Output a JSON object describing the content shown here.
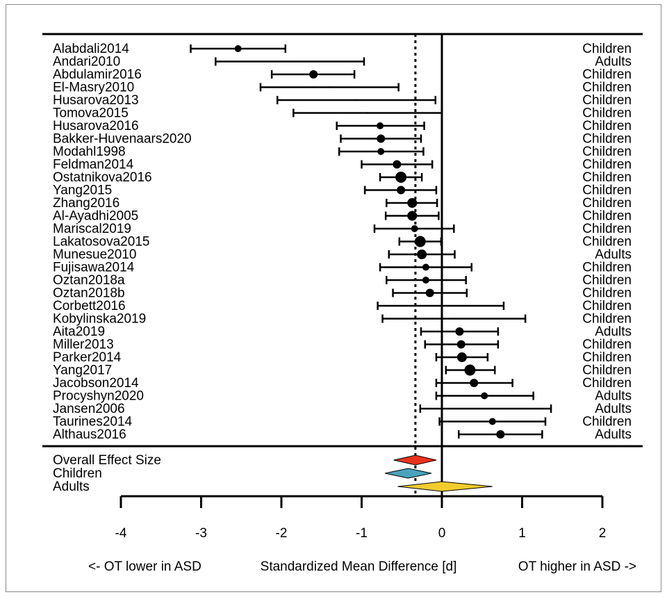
{
  "chart_data": {
    "type": "forest",
    "xlabel": "Standardized Mean Difference [d]",
    "xlabel_left": "<- OT lower in ASD",
    "xlabel_right": "OT higher in ASD ->",
    "xlim": [
      -4,
      2
    ],
    "xticks": [
      "-4",
      "-3",
      "-2",
      "-1",
      "0",
      "1",
      "2"
    ],
    "reference_line": 0,
    "overall_effect_line": -0.33,
    "studies": [
      {
        "name": "Alabdali2014",
        "group": "Children",
        "d": -2.54,
        "lower": -3.13,
        "upper": -1.95,
        "weight": 3
      },
      {
        "name": "Andari2010",
        "group": "Adults",
        "d": -1.89,
        "lower": -2.82,
        "upper": -0.97,
        "weight": 0
      },
      {
        "name": "Abdulamir2016",
        "group": "Children",
        "d": -1.6,
        "lower": -2.12,
        "upper": -1.09,
        "weight": 4
      },
      {
        "name": "El-Masry2010",
        "group": "Children",
        "d": -1.4,
        "lower": -2.26,
        "upper": -0.54,
        "weight": 0
      },
      {
        "name": "Husarova2013",
        "group": "Children",
        "d": -1.07,
        "lower": -2.05,
        "upper": -0.08,
        "weight": 0
      },
      {
        "name": "Tomova2015",
        "group": "Children",
        "d": -0.93,
        "lower": -1.85,
        "upper": 0.0,
        "weight": 0
      },
      {
        "name": "Husarova2016",
        "group": "Children",
        "d": -0.77,
        "lower": -1.31,
        "upper": -0.22,
        "weight": 3
      },
      {
        "name": "Bakker-Huvenaars2020",
        "group": "Children",
        "d": -0.76,
        "lower": -1.26,
        "upper": -0.26,
        "weight": 4
      },
      {
        "name": "Modahl1998",
        "group": "Children",
        "d": -0.76,
        "lower": -1.28,
        "upper": -0.23,
        "weight": 3
      },
      {
        "name": "Feldman2014",
        "group": "Children",
        "d": -0.56,
        "lower": -1.0,
        "upper": -0.12,
        "weight": 4
      },
      {
        "name": "Ostatnikova2016",
        "group": "Children",
        "d": -0.51,
        "lower": -0.77,
        "upper": -0.25,
        "weight": 6
      },
      {
        "name": "Yang2015",
        "group": "Children",
        "d": -0.51,
        "lower": -0.96,
        "upper": -0.07,
        "weight": 4
      },
      {
        "name": "Zhang2016",
        "group": "Children",
        "d": -0.37,
        "lower": -0.69,
        "upper": -0.06,
        "weight": 5
      },
      {
        "name": "Al-Ayadhi2005",
        "group": "Children",
        "d": -0.37,
        "lower": -0.7,
        "upper": -0.04,
        "weight": 5
      },
      {
        "name": "Mariscal2019",
        "group": "Children",
        "d": -0.34,
        "lower": -0.84,
        "upper": 0.15,
        "weight": 3
      },
      {
        "name": "Lakatosova2015",
        "group": "Children",
        "d": -0.27,
        "lower": -0.53,
        "upper": -0.01,
        "weight": 6
      },
      {
        "name": "Munesue2010",
        "group": "Adults",
        "d": -0.25,
        "lower": -0.66,
        "upper": 0.16,
        "weight": 5
      },
      {
        "name": "Fujisawa2014",
        "group": "Children",
        "d": -0.2,
        "lower": -0.77,
        "upper": 0.37,
        "weight": 3
      },
      {
        "name": "Oztan2018a",
        "group": "Children",
        "d": -0.2,
        "lower": -0.69,
        "upper": 0.3,
        "weight": 3
      },
      {
        "name": "Oztan2018b",
        "group": "Children",
        "d": -0.15,
        "lower": -0.61,
        "upper": 0.31,
        "weight": 4
      },
      {
        "name": "Corbett2016",
        "group": "Children",
        "d": -0.02,
        "lower": -0.8,
        "upper": 0.77,
        "weight": 0
      },
      {
        "name": "Kobylinska2019",
        "group": "Children",
        "d": 0.15,
        "lower": -0.74,
        "upper": 1.04,
        "weight": 0
      },
      {
        "name": "Aita2019",
        "group": "Adults",
        "d": 0.22,
        "lower": -0.26,
        "upper": 0.7,
        "weight": 4
      },
      {
        "name": "Miller2013",
        "group": "Children",
        "d": 0.24,
        "lower": -0.21,
        "upper": 0.7,
        "weight": 4
      },
      {
        "name": "Parker2014",
        "group": "Children",
        "d": 0.25,
        "lower": -0.07,
        "upper": 0.57,
        "weight": 5
      },
      {
        "name": "Yang2017",
        "group": "Children",
        "d": 0.35,
        "lower": 0.05,
        "upper": 0.66,
        "weight": 6
      },
      {
        "name": "Jacobson2014",
        "group": "Children",
        "d": 0.4,
        "lower": -0.07,
        "upper": 0.88,
        "weight": 4
      },
      {
        "name": "Procyshyn2020",
        "group": "Adults",
        "d": 0.53,
        "lower": -0.07,
        "upper": 1.14,
        "weight": 3
      },
      {
        "name": "Jansen2006",
        "group": "Adults",
        "d": 0.54,
        "lower": -0.27,
        "upper": 1.36,
        "weight": 0
      },
      {
        "name": "Taurines2014",
        "group": "Children",
        "d": 0.63,
        "lower": -0.03,
        "upper": 1.29,
        "weight": 3
      },
      {
        "name": "Althaus2016",
        "group": "Adults",
        "d": 0.73,
        "lower": 0.21,
        "upper": 1.25,
        "weight": 4
      }
    ],
    "summaries": [
      {
        "label": "Overall Effect Size",
        "d": -0.33,
        "lower": -0.6,
        "upper": -0.07,
        "color": "#e8341c"
      },
      {
        "label": "Children",
        "d": -0.42,
        "lower": -0.71,
        "upper": -0.13,
        "color": "#4aa3bd"
      },
      {
        "label": "Adults",
        "d": 0.0,
        "lower": -0.55,
        "upper": 0.63,
        "color": "#f2cc2e"
      }
    ]
  }
}
